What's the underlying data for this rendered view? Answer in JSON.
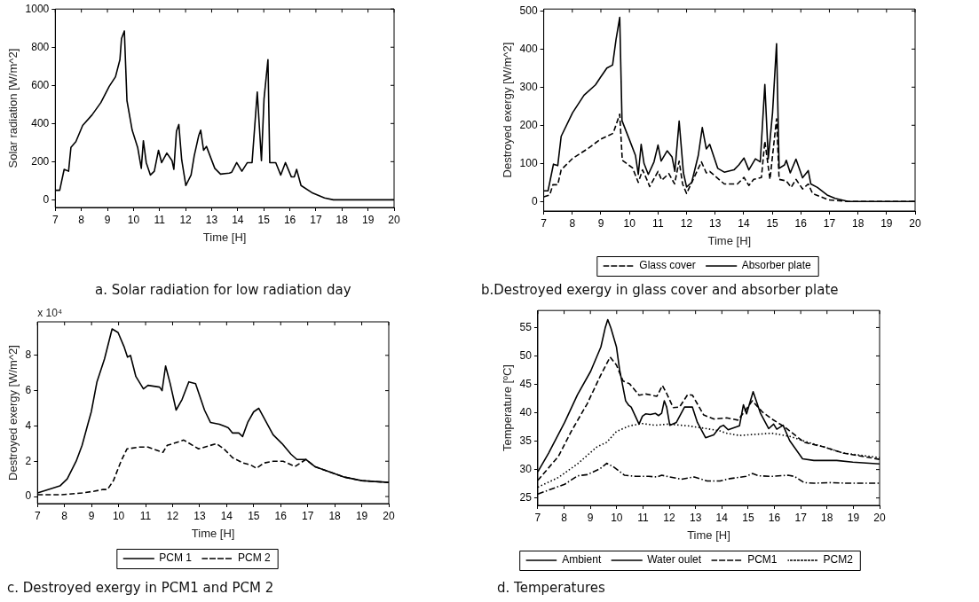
{
  "chart_data": [
    {
      "type": "line",
      "title": "a. Solar radiation for low  radiation day",
      "xlabel": "Time [H]",
      "ylabel": "Solar radiation [W/m^2]",
      "xlim": [
        7,
        20
      ],
      "xticks": [
        7,
        8,
        9,
        10,
        11,
        12,
        13,
        14,
        15,
        16,
        17,
        18,
        19,
        20
      ],
      "ylim": [
        -40,
        1000
      ],
      "yticks": [
        0,
        200,
        400,
        600,
        800,
        1000
      ],
      "marker": "none",
      "legend": false,
      "series": [
        {
          "color": "#000000",
          "line_style": "solid",
          "x": [
            7,
            7.17,
            7.34,
            7.51,
            7.6,
            7.79,
            8.05,
            8.41,
            8.75,
            9.07,
            9.31,
            9.48,
            9.54,
            9.65,
            9.68,
            9.75,
            9.95,
            10.16,
            10.3,
            10.38,
            10.49,
            10.65,
            10.8,
            10.96,
            11.08,
            11.28,
            11.48,
            11.55,
            11.65,
            11.74,
            11.85,
            12.01,
            12.21,
            12.33,
            12.5,
            12.58,
            12.69,
            12.8,
            13.12,
            13.34,
            13.68,
            13.77,
            13.96,
            14.16,
            14.37,
            14.55,
            14.75,
            14.91,
            15.01,
            15.16,
            15.23,
            15.46,
            15.65,
            15.83,
            16.06,
            16.17,
            16.26,
            16.43,
            16.88,
            17.33,
            17.67,
            20
          ],
          "values": [
            50,
            50,
            160,
            150,
            275,
            305,
            390,
            445,
            510,
            595,
            645,
            735,
            845,
            885,
            885,
            520,
            365,
            275,
            165,
            310,
            195,
            130,
            150,
            260,
            195,
            245,
            205,
            160,
            360,
            395,
            210,
            75,
            130,
            230,
            335,
            365,
            260,
            280,
            165,
            135,
            140,
            145,
            195,
            150,
            195,
            195,
            565,
            205,
            530,
            735,
            195,
            195,
            130,
            195,
            120,
            120,
            160,
            75,
            35,
            10,
            0,
            0
          ]
        }
      ]
    },
    {
      "type": "line",
      "title": "b.Destroyed exergy in glass cover and absorber plate",
      "xlabel": "Time [H]",
      "ylabel": "Destroyed exergy [W/m^2]",
      "xlim": [
        7,
        20
      ],
      "xticks": [
        7,
        8,
        9,
        10,
        11,
        12,
        13,
        14,
        15,
        16,
        17,
        18,
        19,
        20
      ],
      "ylim": [
        -25,
        505
      ],
      "yticks": [
        0,
        100,
        200,
        300,
        400,
        500
      ],
      "marker": "none",
      "legend": "bottom",
      "series": [
        {
          "name": "Glass cover",
          "color": "#000000",
          "line_style": "dashed",
          "x": [
            7,
            7.21,
            7.32,
            7.49,
            7.61,
            8.01,
            8.53,
            8.98,
            9.43,
            9.66,
            9.75,
            10.11,
            10.31,
            10.46,
            10.63,
            10.71,
            11,
            11.13,
            11.38,
            11.58,
            11.74,
            11.86,
            12,
            12.52,
            12.69,
            12.81,
            13.32,
            13.78,
            14.01,
            14.18,
            14.35,
            14.62,
            14.74,
            14.92,
            15.15,
            15.24,
            15.49,
            15.66,
            15.83,
            16.06,
            16.26,
            16.41,
            16.98,
            17.66,
            20
          ],
          "values": [
            12,
            17,
            44,
            44,
            83,
            113,
            138,
            163,
            179,
            229,
            108,
            88,
            50,
            83,
            54,
            39,
            79,
            56,
            73,
            46,
            106,
            46,
            21,
            104,
            75,
            79,
            46,
            46,
            63,
            42,
            58,
            63,
            158,
            58,
            217,
            58,
            54,
            37,
            58,
            33,
            46,
            21,
            4,
            0,
            0
          ]
        },
        {
          "name": "Absorber plate",
          "color": "#000000",
          "line_style": "solid",
          "x": [
            7,
            7.15,
            7.34,
            7.49,
            7.61,
            8.01,
            8.41,
            8.81,
            8.98,
            9.21,
            9.41,
            9.53,
            9.66,
            9.74,
            10,
            10.21,
            10.31,
            10.41,
            10.51,
            10.66,
            10.86,
            11,
            11.11,
            11.32,
            11.49,
            11.59,
            11.74,
            11.89,
            12,
            12.18,
            12.41,
            12.55,
            12.69,
            12.81,
            13.09,
            13.32,
            13.66,
            13.83,
            14.01,
            14.18,
            14.41,
            14.58,
            14.74,
            14.86,
            15.01,
            15.15,
            15.24,
            15.43,
            15.49,
            15.63,
            15.83,
            16.06,
            16.26,
            16.35,
            16.58,
            16.92,
            17.2,
            17.66,
            20
          ],
          "values": [
            28,
            28,
            98,
            94,
            171,
            233,
            279,
            306,
            325,
            350,
            358,
            425,
            483,
            212,
            162,
            121,
            71,
            150,
            100,
            71,
            104,
            148,
            106,
            133,
            117,
            79,
            211,
            75,
            38,
            50,
            121,
            194,
            138,
            150,
            87,
            77,
            83,
            96,
            114,
            83,
            112,
            104,
            307,
            112,
            233,
            414,
            87,
            96,
            108,
            75,
            111,
            62,
            81,
            46,
            37,
            17,
            8,
            0,
            0
          ]
        }
      ]
    },
    {
      "type": "line",
      "title": "c. Destroyed exergy in PCM1 and PCM 2",
      "xlabel": "Time [H]",
      "ylabel": "Destroyed exergy [W/m^2]",
      "annotations": [
        "x 10⁴"
      ],
      "xlim": [
        7,
        20
      ],
      "xticks": [
        7,
        8,
        9,
        10,
        11,
        12,
        13,
        14,
        15,
        16,
        17,
        18,
        19,
        20
      ],
      "ylim": [
        -0.4,
        9.9
      ],
      "yticks": [
        0,
        2,
        4,
        6,
        8
      ],
      "marker": "none",
      "legend": "bottom",
      "series": [
        {
          "name": "PCM 1",
          "color": "#000000",
          "line_style": "solid",
          "x": [
            7,
            7.83,
            8.1,
            8.43,
            8.65,
            8.88,
            8.99,
            9.2,
            9.48,
            9.76,
            9.98,
            10.2,
            10.33,
            10.44,
            10.64,
            10.92,
            11.09,
            11.52,
            11.61,
            11.74,
            11.91,
            12.13,
            12.35,
            12.6,
            12.85,
            13.18,
            13.4,
            13.73,
            14.06,
            14.22,
            14.45,
            14.59,
            14.78,
            15,
            15.19,
            15.72,
            16.05,
            16.38,
            16.6,
            16.93,
            17.26,
            17.81,
            18.36,
            19,
            20
          ],
          "values": [
            0.2,
            0.6,
            1.0,
            2.0,
            2.9,
            4.2,
            4.8,
            6.5,
            7.8,
            9.5,
            9.3,
            8.5,
            7.9,
            8.0,
            6.8,
            6.1,
            6.3,
            6.2,
            6.0,
            7.4,
            6.4,
            4.9,
            5.5,
            6.5,
            6.4,
            4.9,
            4.2,
            4.1,
            3.9,
            3.6,
            3.6,
            3.4,
            4.2,
            4.8,
            5.0,
            3.5,
            3.0,
            2.4,
            2.1,
            2.1,
            1.7,
            1.4,
            1.1,
            0.9,
            0.8
          ]
        },
        {
          "name": "PCM 2",
          "color": "#000000",
          "line_style": "dashed",
          "x": [
            7,
            7.88,
            8.65,
            9.1,
            9.43,
            9.59,
            9.81,
            10.09,
            10.31,
            10.75,
            11.09,
            11.64,
            11.8,
            12.02,
            12.41,
            12.96,
            13.62,
            13.9,
            14.22,
            14.61,
            14.88,
            15.1,
            15.38,
            15.72,
            16.09,
            16.53,
            16.93,
            17.26,
            17.81,
            18.36,
            19,
            20
          ],
          "values": [
            0.1,
            0.1,
            0.2,
            0.3,
            0.4,
            0.4,
            0.9,
            2.0,
            2.7,
            2.8,
            2.8,
            2.5,
            2.9,
            3.0,
            3.2,
            2.7,
            3.0,
            2.7,
            2.2,
            1.9,
            1.8,
            1.6,
            1.9,
            2.0,
            2.0,
            1.7,
            2.1,
            1.7,
            1.4,
            1.1,
            0.9,
            0.8
          ]
        }
      ]
    },
    {
      "type": "line",
      "title": "d. Temperatures",
      "xlabel": "Time [H]",
      "ylabel": "Temperature [ºC]",
      "xlim": [
        7,
        20
      ],
      "xticks": [
        7,
        8,
        9,
        10,
        11,
        12,
        13,
        14,
        15,
        16,
        17,
        18,
        19,
        20
      ],
      "ylim": [
        23.7,
        58
      ],
      "yticks": [
        25,
        30,
        35,
        40,
        45,
        50,
        55
      ],
      "marker": "none",
      "legend": "bottom",
      "series": [
        {
          "name": "Ambient",
          "color": "#000000",
          "line_style": "dashdot",
          "x": [
            7,
            7.53,
            8.02,
            8.51,
            8.88,
            9.38,
            9.62,
            9.87,
            10.3,
            10.73,
            11.22,
            11.53,
            11.71,
            12.45,
            12.95,
            13.44,
            13.93,
            14.3,
            14.92,
            15.16,
            15.41,
            15.9,
            16.52,
            16.76,
            17.13,
            17.5,
            18.12,
            18.73,
            20
          ],
          "values": [
            25.7,
            26.6,
            27.4,
            28.9,
            29.1,
            30.2,
            31.1,
            30.5,
            29.0,
            28.8,
            28.8,
            28.7,
            29.0,
            28.3,
            28.7,
            28.0,
            28.0,
            28.4,
            28.8,
            29.3,
            28.9,
            28.8,
            29.0,
            28.8,
            27.7,
            27.6,
            27.7,
            27.6,
            27.6
          ]
        },
        {
          "name": "Water oulet",
          "color": "#000000",
          "line_style": "solid",
          "x": [
            7,
            7.41,
            8.02,
            8.51,
            9.01,
            9.4,
            9.56,
            9.66,
            9.78,
            9.99,
            10.11,
            10.34,
            10.46,
            10.55,
            10.71,
            10.85,
            10.98,
            11.1,
            11.28,
            11.47,
            11.59,
            11.71,
            11.81,
            11.9,
            12.02,
            12.27,
            12.58,
            12.88,
            13.07,
            13.38,
            13.69,
            13.93,
            14.06,
            14.24,
            14.67,
            14.82,
            14.94,
            15.19,
            15.47,
            15.78,
            15.97,
            16.09,
            16.33,
            16.58,
            17.07,
            17.5,
            18.37,
            18.98,
            20
          ],
          "values": [
            29.6,
            32.9,
            38.3,
            43.2,
            47.3,
            51.6,
            54.9,
            56.4,
            54.9,
            51.6,
            47.6,
            42.1,
            41.3,
            41.0,
            39.4,
            38.0,
            39.4,
            39.8,
            39.7,
            39.9,
            39.5,
            39.9,
            42.1,
            41.0,
            37.8,
            38.3,
            41.0,
            41.0,
            38.3,
            35.6,
            36.1,
            37.5,
            37.8,
            37.0,
            37.7,
            41.4,
            39.8,
            43.7,
            39.9,
            37.2,
            38.0,
            37.1,
            37.8,
            35.1,
            31.9,
            31.6,
            31.6,
            31.3,
            31.0
          ]
        },
        {
          "name": "PCM1",
          "color": "#000000",
          "line_style": "dashed",
          "x": [
            7,
            7.78,
            8.27,
            8.88,
            9.38,
            9.75,
            9.99,
            10.24,
            10.49,
            10.85,
            11.1,
            11.53,
            11.74,
            11.9,
            12.15,
            12.39,
            12.7,
            12.88,
            13.31,
            13.69,
            14.18,
            14.61,
            14.86,
            15.16,
            15.53,
            15.9,
            16.39,
            17.13,
            17.87,
            18.61,
            20
          ],
          "values": [
            28.1,
            32.3,
            36.7,
            41.6,
            46.5,
            49.8,
            48.4,
            45.6,
            45.1,
            43.1,
            43.3,
            42.9,
            44.8,
            43.4,
            40.9,
            41.0,
            43.2,
            43.1,
            39.6,
            38.9,
            39.1,
            38.7,
            40.2,
            42.1,
            40.2,
            38.9,
            37.5,
            34.8,
            34.0,
            32.9,
            31.8
          ]
        },
        {
          "name": "PCM2",
          "color": "#000000",
          "line_style": "dotted",
          "x": [
            7,
            7.78,
            8.51,
            9.25,
            9.62,
            9.99,
            10.49,
            10.98,
            11.47,
            11.96,
            12.7,
            13.44,
            13.93,
            14.18,
            14.67,
            15.28,
            15.9,
            16.63,
            17.13,
            17.87,
            18.61,
            20
          ],
          "values": [
            26.9,
            28.6,
            31.0,
            34.0,
            34.8,
            36.7,
            37.7,
            38.1,
            37.8,
            38.0,
            37.7,
            37.2,
            36.8,
            36.4,
            36.0,
            36.2,
            36.4,
            35.8,
            35.0,
            34.0,
            32.9,
            32.1
          ]
        }
      ]
    }
  ]
}
